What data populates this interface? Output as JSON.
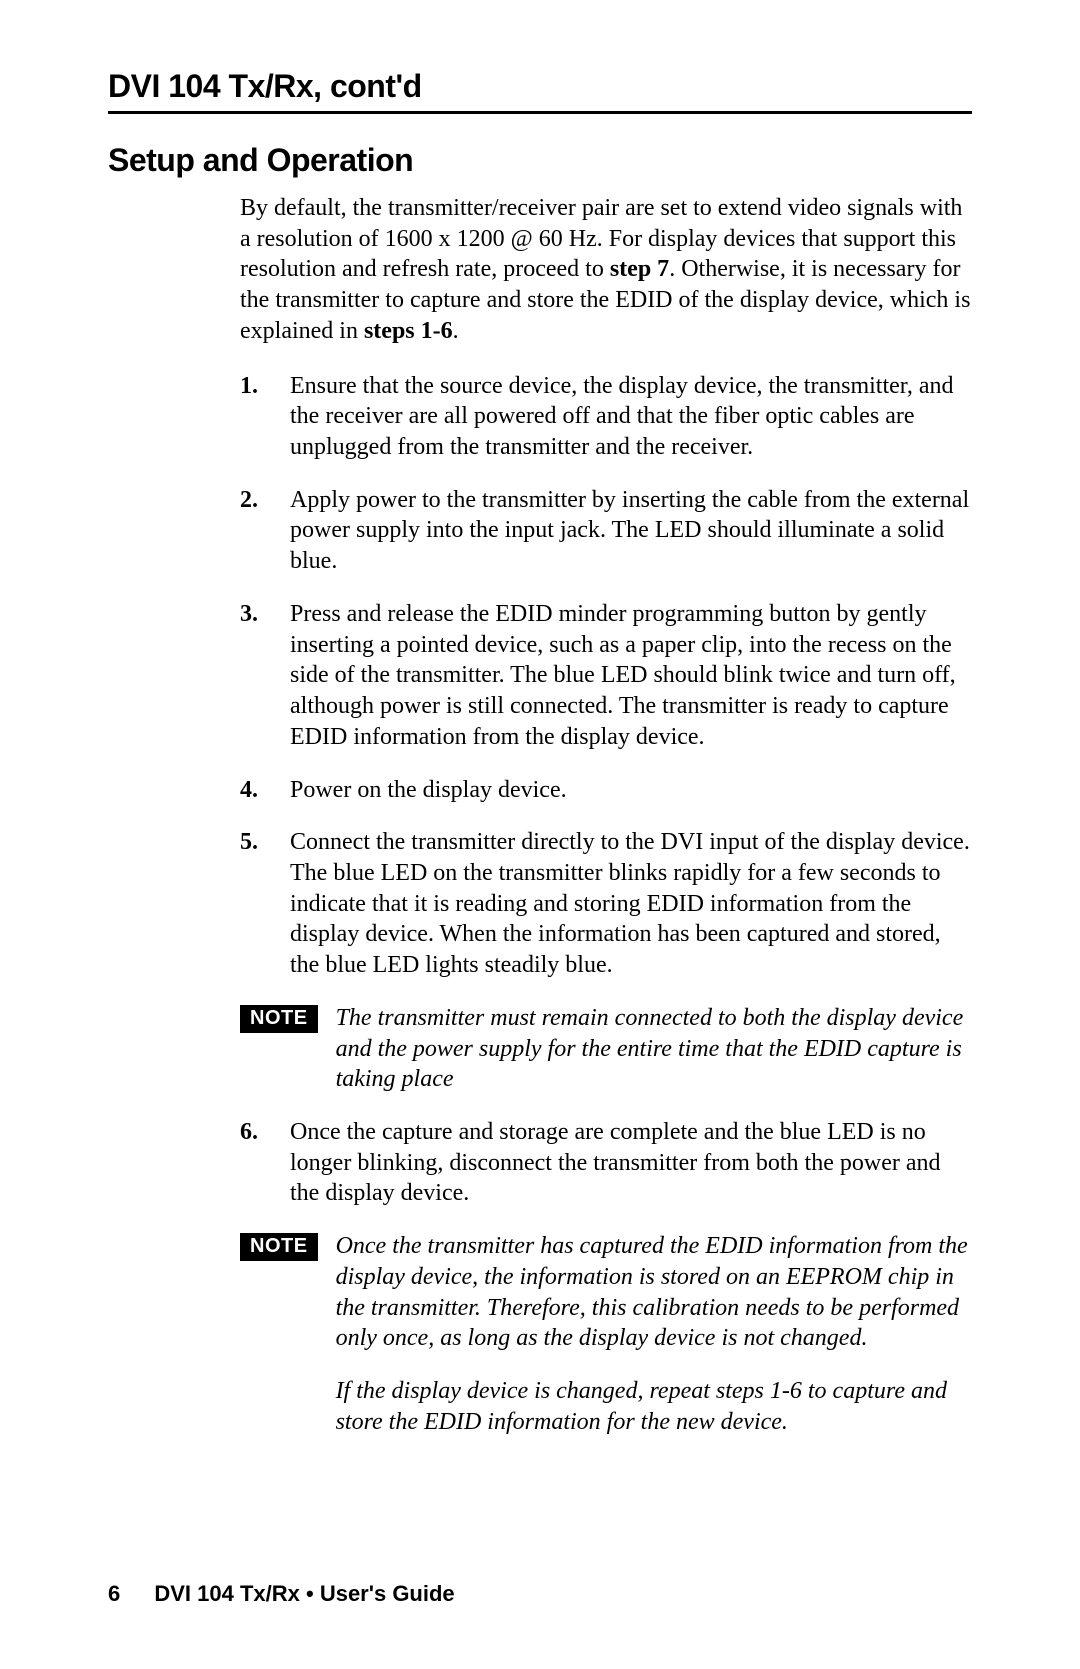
{
  "header": {
    "title_bold": "DVI 104",
    "title_rest": " Tx/Rx, cont'd"
  },
  "section_heading": "Setup and Operation",
  "intro": {
    "pre": "By default, the transmitter/receiver pair are set to extend video signals with a resolution of 1600 x 1200 @ 60 Hz.  For display devices that support this resolution and refresh rate, proceed to ",
    "bold1": "step 7",
    "mid": ".  Otherwise, it is necessary for the transmitter to capture and store the EDID of the display device, which is explained in ",
    "bold2": "steps 1-6",
    "post": "."
  },
  "steps": [
    {
      "num": "1.",
      "text": "Ensure that the source device, the display device, the transmitter, and the receiver are all powered off and that the fiber optic cables are unplugged from the transmitter and the receiver."
    },
    {
      "num": "2.",
      "text": "Apply power to the transmitter by inserting the cable from the external power supply into the input jack.  The LED should illuminate a solid blue."
    },
    {
      "num": "3.",
      "text": "Press and release the EDID minder programming button by gently inserting a pointed device, such as a paper clip, into the recess on the side of the transmitter.  The blue LED should blink twice and turn off, although power is still connected.  The transmitter is ready to capture EDID information from the display device."
    },
    {
      "num": "4.",
      "text": "Power on the display device."
    },
    {
      "num": "5.",
      "text": "Connect the transmitter directly to the DVI input of the display device.  The blue LED on the transmitter blinks rapidly for a few seconds to indicate that it is reading and storing EDID information from the display device.  When the information has been captured and stored, the blue LED lights steadily blue."
    }
  ],
  "note1": {
    "label": "NOTE",
    "text": "The transmitter must remain connected to both the display device and the power supply for the entire time that the EDID capture is taking place"
  },
  "step6": {
    "num": "6.",
    "text": "Once the capture and storage are complete and the blue LED is no longer blinking, disconnect the transmitter from both the power and the display device."
  },
  "note2": {
    "label": "NOTE",
    "p1": "Once the transmitter has captured the EDID information from the display device, the information is stored on an EEPROM chip in the transmitter.  Therefore, this calibration needs to be performed only once, as long as the display device is not changed.",
    "p2": "If the display device is changed, repeat steps 1-6 to capture and store the EDID information for the new device."
  },
  "footer": {
    "pagenum": "6",
    "doctitle": "DVI 104 Tx/Rx • User's Guide"
  }
}
